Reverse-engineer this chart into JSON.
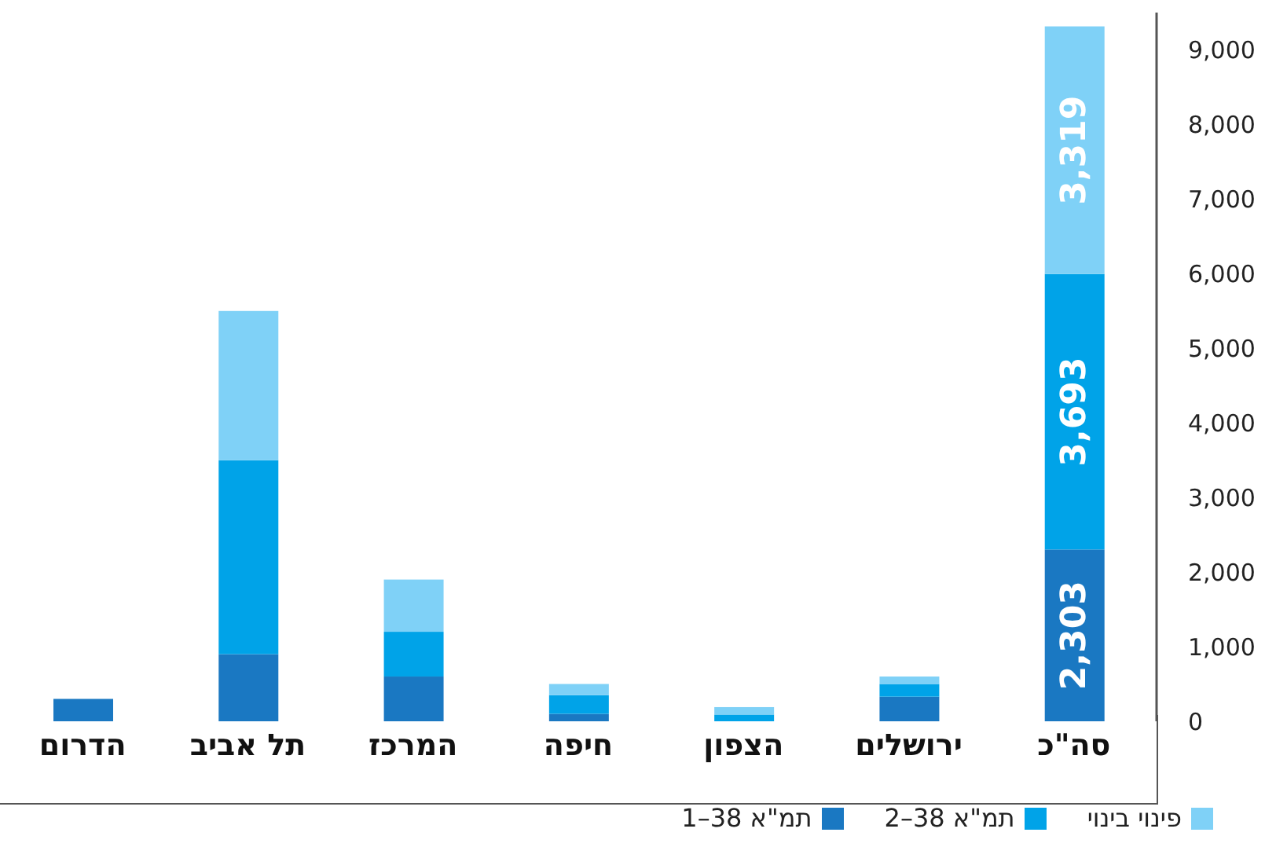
{
  "chart_data": {
    "type": "bar",
    "stacked": true,
    "categories": [
      "הדרום",
      "תל אביב",
      "המרכז",
      "חיפה",
      "הצפון",
      "ירושלים",
      "סה\"כ"
    ],
    "series": [
      {
        "name": "תמ\"א 38–1",
        "color": "#1a78c2",
        "values": [
          300,
          900,
          600,
          100,
          0,
          330,
          2303
        ],
        "value_labels": [
          null,
          null,
          null,
          null,
          null,
          null,
          "2,303"
        ]
      },
      {
        "name": "תמ\"א 38–2",
        "color": "#00a3e8",
        "values": [
          0,
          2600,
          600,
          250,
          90,
          170,
          3693
        ],
        "value_labels": [
          null,
          null,
          null,
          null,
          null,
          null,
          "3,693"
        ]
      },
      {
        "name": "פינוי בינוי",
        "color": "#7fd1f7",
        "values": [
          0,
          2000,
          700,
          150,
          100,
          100,
          3319
        ],
        "value_labels": [
          null,
          null,
          null,
          null,
          null,
          null,
          "3,319"
        ]
      }
    ],
    "ylim": [
      0,
      9500
    ],
    "yticks": [
      {
        "value": 0,
        "label": "0"
      },
      {
        "value": 1000,
        "label": "1,000"
      },
      {
        "value": 2000,
        "label": "2,000"
      },
      {
        "value": 3000,
        "label": "3,000"
      },
      {
        "value": 4000,
        "label": "4,000"
      },
      {
        "value": 5000,
        "label": "5,000"
      },
      {
        "value": 6000,
        "label": "6,000"
      },
      {
        "value": 7000,
        "label": "7,000"
      },
      {
        "value": 8000,
        "label": "8,000"
      },
      {
        "value": 9000,
        "label": "9,000"
      }
    ],
    "grid": false,
    "legend": "bottom"
  }
}
